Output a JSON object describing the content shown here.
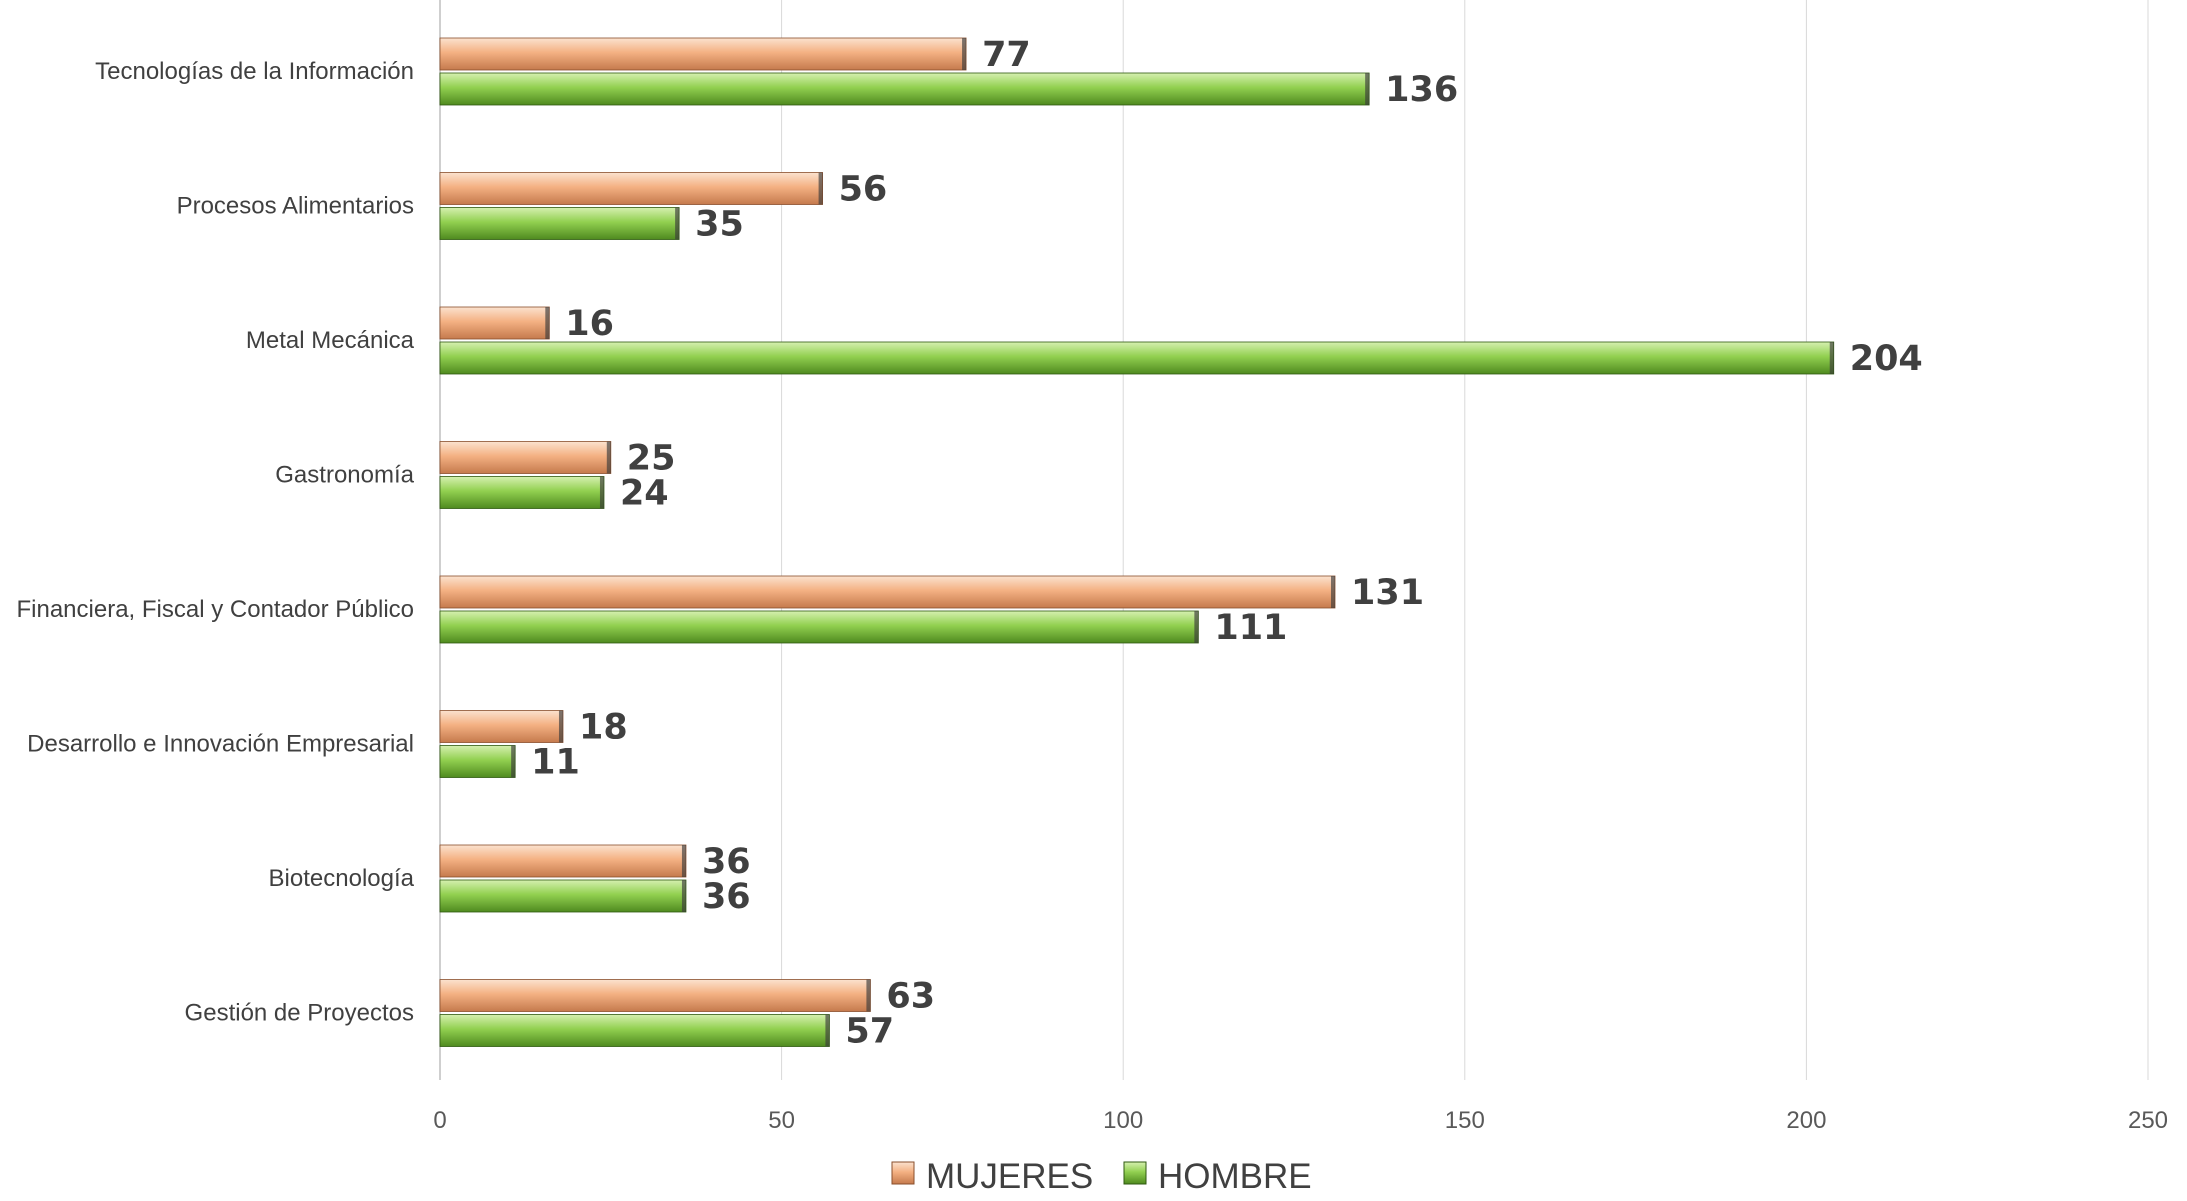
{
  "chart_data": {
    "type": "bar",
    "orientation": "horizontal",
    "title": "",
    "xlabel": "",
    "ylabel": "",
    "categories": [
      "Tecnologías de la Información",
      "Procesos Alimentarios",
      "Metal Mecánica",
      "Gastronomía",
      "Financiera, Fiscal y Contador Público",
      "Desarrollo e Innovación Empresarial",
      "Biotecnología",
      "Gestión de Proyectos"
    ],
    "series": [
      {
        "name": "MUJERES",
        "color": "#F4B183",
        "values": [
          77,
          56,
          16,
          25,
          131,
          18,
          36,
          63
        ]
      },
      {
        "name": "HOMBRE",
        "color": "#92D050",
        "values": [
          136,
          35,
          204,
          24,
          111,
          11,
          36,
          57
        ]
      }
    ],
    "xlim": [
      0,
      250
    ],
    "xticks": [
      0,
      50,
      100,
      150,
      200,
      250
    ],
    "grid": true,
    "legend_position": "bottom"
  }
}
